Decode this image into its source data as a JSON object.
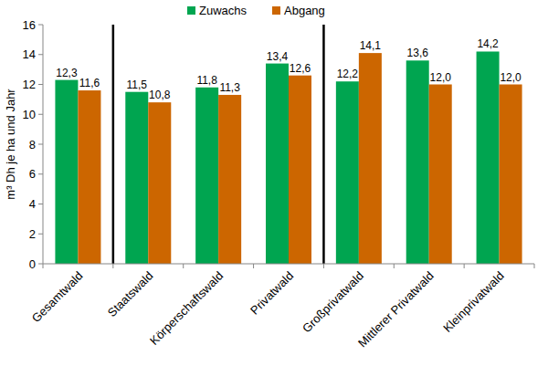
{
  "chart_data": {
    "type": "bar",
    "y_label": "m³ Dh je ha und Jahr",
    "categories": [
      "Gesamtwald",
      "Staatswald",
      "Körperschaftswald",
      "Privatwald",
      "Großprivatwald",
      "Mittlerer Privatwald",
      "Kleinprivatwald"
    ],
    "series": [
      {
        "name": "Zuwachs",
        "color": "#00a550",
        "values": [
          12.3,
          11.5,
          11.8,
          13.4,
          12.2,
          13.6,
          14.2
        ],
        "value_labels": [
          "12,3",
          "11,5",
          "11,8",
          "13,4",
          "12,2",
          "13,6",
          "14,2"
        ]
      },
      {
        "name": "Abgang",
        "color": "#cc6600",
        "values": [
          11.6,
          10.8,
          11.3,
          12.6,
          14.1,
          12.0,
          12.0
        ],
        "value_labels": [
          "11,6",
          "10,8",
          "11,3",
          "12,6",
          "14,1",
          "12,0",
          "12,0"
        ]
      }
    ],
    "ylim": [
      0,
      16
    ],
    "yticks": [
      0,
      2,
      4,
      6,
      8,
      10,
      12,
      14,
      16
    ],
    "grid": false,
    "legend": "top",
    "data_labels": true
  }
}
